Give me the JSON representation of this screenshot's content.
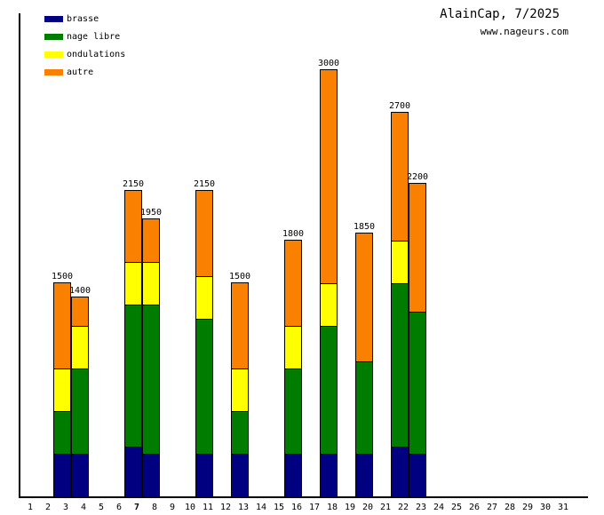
{
  "header": {
    "title": "AlainCap, 7/2025",
    "website": "www.nageurs.com"
  },
  "legend": {
    "items": [
      {
        "key": "brasse",
        "label": "brasse",
        "color": "#000080"
      },
      {
        "key": "nage_libre",
        "label": "nage libre",
        "color": "#007d00"
      },
      {
        "key": "ondulations",
        "label": "ondulations",
        "color": "#ffff00"
      },
      {
        "key": "autre",
        "label": "autre",
        "color": "#f98000"
      }
    ]
  },
  "chart_data": {
    "type": "bar",
    "stacked": true,
    "title": "AlainCap, 7/2025",
    "xlabel": "day of month",
    "ylabel": "",
    "value_axis_visible": false,
    "grid": false,
    "legend_position": "top-left",
    "x_label_days": [
      1,
      2,
      3,
      4,
      5,
      6,
      7,
      8,
      9,
      10,
      11,
      12,
      13,
      14,
      15,
      16,
      17,
      18,
      19,
      20,
      21,
      22,
      23,
      24,
      25,
      26,
      27,
      28,
      29,
      30,
      31
    ],
    "bold_day": 7,
    "segment_order_bottom_to_top": [
      "brasse",
      "nage_libre",
      "ondulations",
      "autre"
    ],
    "bars": [
      {
        "day": 3,
        "total": 1500,
        "segments": {
          "brasse": 300,
          "nage_libre": 300,
          "ondulations": 300,
          "autre": 600
        }
      },
      {
        "day": 4,
        "total": 1400,
        "segments": {
          "brasse": 300,
          "nage_libre": 600,
          "ondulations": 300,
          "autre": 200
        }
      },
      {
        "day": 7,
        "total": 2150,
        "segments": {
          "brasse": 350,
          "nage_libre": 1000,
          "ondulations": 300,
          "autre": 500
        }
      },
      {
        "day": 8,
        "total": 1950,
        "segments": {
          "brasse": 300,
          "nage_libre": 1050,
          "ondulations": 300,
          "autre": 300
        }
      },
      {
        "day": 11,
        "total": 2150,
        "segments": {
          "brasse": 300,
          "nage_libre": 950,
          "ondulations": 300,
          "autre": 600
        }
      },
      {
        "day": 13,
        "total": 1500,
        "segments": {
          "brasse": 300,
          "nage_libre": 300,
          "ondulations": 300,
          "autre": 600
        }
      },
      {
        "day": 16,
        "total": 1800,
        "segments": {
          "brasse": 300,
          "nage_libre": 600,
          "ondulations": 300,
          "autre": 600
        }
      },
      {
        "day": 18,
        "total": 3000,
        "segments": {
          "brasse": 300,
          "nage_libre": 900,
          "ondulations": 300,
          "autre": 1500
        }
      },
      {
        "day": 20,
        "total": 1850,
        "segments": {
          "brasse": 300,
          "nage_libre": 650,
          "ondulations": 0,
          "autre": 900
        }
      },
      {
        "day": 22,
        "total": 2700,
        "segments": {
          "brasse": 350,
          "nage_libre": 1150,
          "ondulations": 300,
          "autre": 900
        }
      },
      {
        "day": 23,
        "total": 2200,
        "segments": {
          "brasse": 300,
          "nage_libre": 1000,
          "ondulations": 0,
          "autre": 900
        }
      }
    ]
  }
}
